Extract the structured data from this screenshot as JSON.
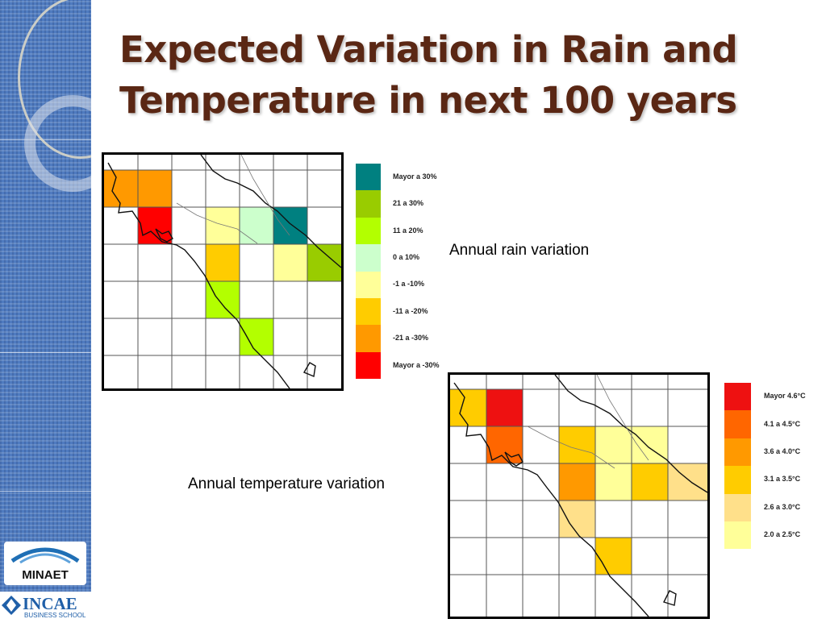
{
  "slide": {
    "title_line1": "Expected Variation in Rain and",
    "title_line2": "Temperature in next 100 years"
  },
  "rain": {
    "caption": "Annual rain variation",
    "legend": [
      {
        "label": "Mayor a 30%",
        "color": "#008080"
      },
      {
        "label": "21 a 30%",
        "color": "#99cc00"
      },
      {
        "label": "11 a 20%",
        "color": "#b3ff00"
      },
      {
        "label": "0 a 10%",
        "color": "#ccffcc"
      },
      {
        "label": "-1 a -10%",
        "color": "#ffff99"
      },
      {
        "label": "-11 a -20%",
        "color": "#ffcc00"
      },
      {
        "label": "-21 a -30%",
        "color": "#ff9900"
      },
      {
        "label": "Mayor a -30%",
        "color": "#ff0000"
      }
    ]
  },
  "temperature": {
    "caption": "Annual temperature variation",
    "legend": [
      {
        "label": "Mayor 4.6°C",
        "color": "#ee1111"
      },
      {
        "label": "4.1 a 4.5°C",
        "color": "#ff6600"
      },
      {
        "label": "3.6 a 4.0°C",
        "color": "#ff9900"
      },
      {
        "label": "3.1 a 3.5°C",
        "color": "#ffcc00"
      },
      {
        "label": "2.6 a 3.0°C",
        "color": "#ffe08a"
      },
      {
        "label": "2.0 a 2.5°C",
        "color": "#ffff99"
      }
    ]
  },
  "logos": {
    "minaet": "MINAET",
    "incae": "INCAE",
    "incae_sub": "BUSINESS SCHOOL"
  }
}
